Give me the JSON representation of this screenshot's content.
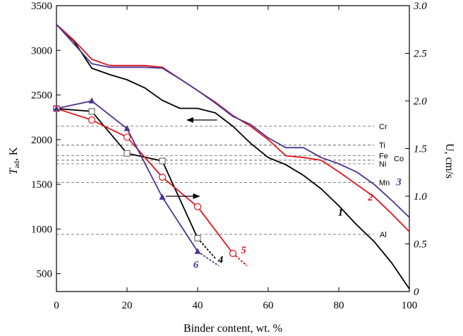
{
  "chart_data": {
    "type": "line",
    "xlabel": "Binder content, wt. %",
    "ylabel_left_main": "T",
    "ylabel_left_sub": "ad",
    "ylabel_left_unit": ", K",
    "ylabel_right": "U, cm/s",
    "xlim": [
      0,
      100
    ],
    "ylim_left": [
      300,
      3500
    ],
    "ylim_right": [
      0,
      3.0
    ],
    "x_ticks": [
      0,
      20,
      40,
      60,
      80,
      100
    ],
    "y_left_ticks": [
      500,
      1000,
      1500,
      2000,
      2500,
      3000,
      3500
    ],
    "y_right_ticks": [
      "0",
      "0.5",
      "1.0",
      "1.5",
      "2.0",
      "2.5",
      "3.0"
    ],
    "y_right_tick_values": [
      0,
      0.5,
      1.0,
      1.5,
      2.0,
      2.5,
      3.0
    ],
    "colors": {
      "black": "#000000",
      "red": "#e0141c",
      "purple": "#4a3591",
      "ref": "#555555"
    },
    "reference_lines": [
      {
        "label": "Cr",
        "y": 2150
      },
      {
        "label": "Ti",
        "y": 1940
      },
      {
        "label": "Fe",
        "y": 1820
      },
      {
        "label": "Co",
        "y": 1770
      },
      {
        "label": "Ni",
        "y": 1730
      },
      {
        "label": "Mn",
        "y": 1520
      },
      {
        "label": "Al",
        "y": 940
      }
    ],
    "series": [
      {
        "name": "1",
        "axis": "left",
        "color": "#000000",
        "marker": "none",
        "x": [
          0,
          5,
          10,
          15,
          20,
          25,
          30,
          35,
          40,
          45,
          50,
          55,
          60,
          65,
          70,
          75,
          80,
          85,
          90,
          95,
          100
        ],
        "y": [
          3290,
          3100,
          2800,
          2730,
          2670,
          2580,
          2440,
          2350,
          2350,
          2300,
          2150,
          1960,
          1800,
          1720,
          1600,
          1450,
          1260,
          1050,
          860,
          620,
          330
        ]
      },
      {
        "name": "2",
        "axis": "left",
        "color": "#e0141c",
        "marker": "none",
        "x": [
          0,
          5,
          10,
          15,
          20,
          25,
          30,
          35,
          40,
          45,
          50,
          55,
          60,
          65,
          70,
          75,
          80,
          85,
          90,
          95,
          100
        ],
        "y": [
          3290,
          3110,
          2900,
          2830,
          2830,
          2830,
          2810,
          2680,
          2550,
          2420,
          2270,
          2150,
          2000,
          1820,
          1800,
          1770,
          1640,
          1500,
          1360,
          1170,
          970
        ]
      },
      {
        "name": "3",
        "axis": "left",
        "color": "#4a3591",
        "marker": "none",
        "x": [
          0,
          5,
          10,
          15,
          20,
          25,
          30,
          35,
          40,
          45,
          50,
          55,
          60,
          65,
          70,
          75,
          80,
          85,
          90,
          95,
          100
        ],
        "y": [
          3290,
          3070,
          2850,
          2810,
          2810,
          2810,
          2800,
          2680,
          2550,
          2410,
          2260,
          2170,
          2020,
          1910,
          1910,
          1800,
          1730,
          1640,
          1500,
          1320,
          1130
        ]
      },
      {
        "name": "4",
        "axis": "right",
        "color": "#000000",
        "marker": "square",
        "x": [
          0,
          10,
          20,
          30,
          40
        ],
        "y": [
          1.92,
          1.89,
          1.45,
          1.37,
          0.56
        ],
        "extension": {
          "x": [
            40,
            45
          ],
          "y": [
            0.56,
            0.35
          ]
        }
      },
      {
        "name": "5",
        "axis": "right",
        "color": "#e0141c",
        "marker": "circle",
        "x": [
          0,
          10,
          20,
          30,
          40,
          50
        ],
        "y": [
          1.92,
          1.8,
          1.62,
          1.2,
          0.89,
          0.4
        ],
        "extension": {
          "x": [
            50,
            54
          ],
          "y": [
            0.4,
            0.27
          ]
        }
      },
      {
        "name": "6",
        "axis": "right",
        "color": "#4a3591",
        "marker": "triangle",
        "x": [
          0,
          10,
          20,
          30,
          40
        ],
        "y": [
          1.92,
          2.0,
          1.71,
          0.99,
          0.42
        ],
        "extension": {
          "x": [
            40,
            46
          ],
          "y": [
            0.42,
            0.27
          ]
        }
      }
    ],
    "annotations": [
      {
        "type": "arrow",
        "direction": "left",
        "meaning": "left axis"
      },
      {
        "type": "arrow",
        "direction": "right",
        "meaning": "right axis"
      }
    ]
  }
}
